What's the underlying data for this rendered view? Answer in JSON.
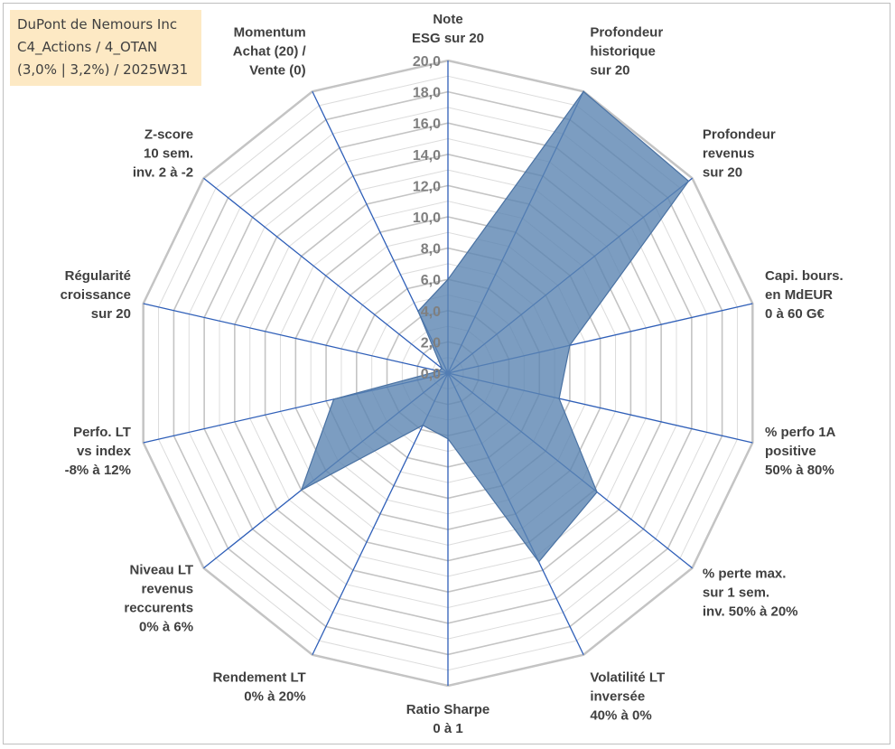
{
  "header": {
    "lines": [
      "DuPont de Nemours Inc",
      "C4_Actions / 4_OTAN",
      "(3,0% | 3,2%) / 2025W31"
    ]
  },
  "chart_data": {
    "type": "radar",
    "title": "DuPont de Nemours Inc\nC4_Actions / 4_OTAN\n(3,0% | 3,2%) / 2025W31",
    "rlim": [
      0,
      20
    ],
    "rticks": [
      "0,0",
      "2,0",
      "4,0",
      "6,0",
      "8,0",
      "10,0",
      "12,0",
      "14,0",
      "16,0",
      "18,0",
      "20,0"
    ],
    "grid": true,
    "categories": [
      [
        "Note",
        "ESG sur 20"
      ],
      [
        "Profondeur",
        "historique",
        "sur 20"
      ],
      [
        "Profondeur",
        "revenus",
        "sur 20"
      ],
      [
        "Capi. bours.",
        "en MdEUR",
        "0 à 60 G€"
      ],
      [
        "% perfo 1A",
        "positive",
        "50% à 80%"
      ],
      [
        "% perte max.",
        "sur 1 sem.",
        "inv. 50% à 20%"
      ],
      [
        "Volatilité LT",
        "inversée",
        "40% à 0%"
      ],
      [
        "Ratio Sharpe",
        "0 à 1"
      ],
      [
        "Rendement LT",
        "0% à 20%"
      ],
      [
        "Niveau LT",
        "revenus",
        "reccurents",
        "0% à 6%"
      ],
      [
        "Perfo. LT",
        "vs index",
        "-8% à 12%"
      ],
      [
        "Régularité",
        "croissance",
        "sur 20"
      ],
      [
        "Z-score",
        "10 sem.",
        "inv. 2 à -2"
      ],
      [
        "Momentum",
        "Achat (20) /",
        "Vente (0)"
      ]
    ],
    "series": [
      {
        "values": [
          6.0,
          20.0,
          19.7,
          8.0,
          7.3,
          12.2,
          13.4,
          4.2,
          3.7,
          12.0,
          7.5,
          0.6,
          0.5,
          4.4
        ]
      }
    ],
    "colors": {
      "fill": "#5b84b1",
      "fill_opacity": 0.8,
      "stroke": "#4a72a3",
      "spoke": "#2f5fb8",
      "grid_major": "#c4c4c4",
      "grid_minor": "#dcdcdc"
    }
  }
}
